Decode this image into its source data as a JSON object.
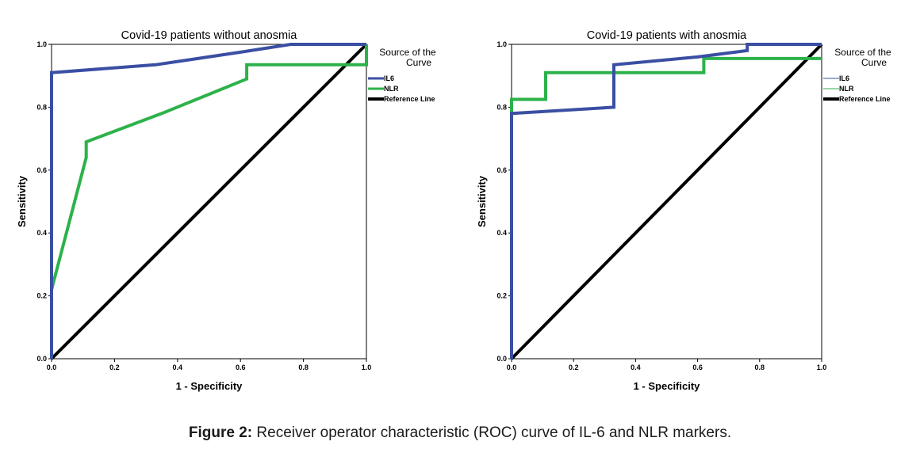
{
  "colors": {
    "IL6": "#3a4fa3",
    "NLR": "#2db24a",
    "Reference Line": "#000000"
  },
  "chart_data": [
    {
      "type": "line",
      "title": "Covid-19 patients without anosmia",
      "xlabel": "1 - Specificity",
      "ylabel": "Sensitivity",
      "xlim": [
        0,
        1
      ],
      "ylim": [
        0,
        1
      ],
      "xticks": [
        "0.0",
        "0.2",
        "0.4",
        "0.6",
        "0.8",
        "1.0"
      ],
      "yticks": [
        "0.0",
        "0.2",
        "0.4",
        "0.6",
        "0.8",
        "1.0"
      ],
      "legend_title": "Source of the Curve",
      "legend_position": "right",
      "grid": false,
      "series": [
        {
          "name": "IL6",
          "x": [
            0,
            0,
            0.33,
            0.6,
            0.76,
            1
          ],
          "y": [
            0,
            0.91,
            0.935,
            0.975,
            1,
            1
          ]
        },
        {
          "name": "NLR",
          "x": [
            0,
            0,
            0.11,
            0.11,
            0.35,
            0.62,
            0.62,
            1,
            1
          ],
          "y": [
            0,
            0.22,
            0.64,
            0.69,
            0.78,
            0.89,
            0.935,
            0.935,
            1
          ]
        },
        {
          "name": "Reference Line",
          "x": [
            0,
            1
          ],
          "y": [
            0,
            1
          ]
        }
      ]
    },
    {
      "type": "line",
      "title": "Covid-19 patients with anosmia",
      "xlabel": "1 - Specificity",
      "ylabel": "Sensitivity",
      "xlim": [
        0,
        1
      ],
      "ylim": [
        0,
        1
      ],
      "xticks": [
        "0.0",
        "0.2",
        "0.4",
        "0.6",
        "0.8",
        "1.0"
      ],
      "yticks": [
        "0.0",
        "0.2",
        "0.4",
        "0.6",
        "0.8",
        "1.0"
      ],
      "legend_title": "Source of the Curve",
      "legend_position": "right",
      "grid": false,
      "series": [
        {
          "name": "IL6",
          "x": [
            0,
            0,
            0.33,
            0.33,
            0.6,
            0.76,
            0.76,
            1
          ],
          "y": [
            0,
            0.78,
            0.8,
            0.935,
            0.96,
            0.98,
            1,
            1
          ]
        },
        {
          "name": "NLR",
          "x": [
            0,
            0,
            0.11,
            0.11,
            0.62,
            0.62,
            1
          ],
          "y": [
            0,
            0.825,
            0.825,
            0.91,
            0.91,
            0.955,
            0.955
          ]
        },
        {
          "name": "Reference Line",
          "x": [
            0,
            1
          ],
          "y": [
            0,
            1
          ]
        }
      ]
    }
  ],
  "caption": {
    "label": "Figure 2:",
    "text": "Receiver operator characteristic (ROC) curve of IL-6 and NLR markers."
  }
}
